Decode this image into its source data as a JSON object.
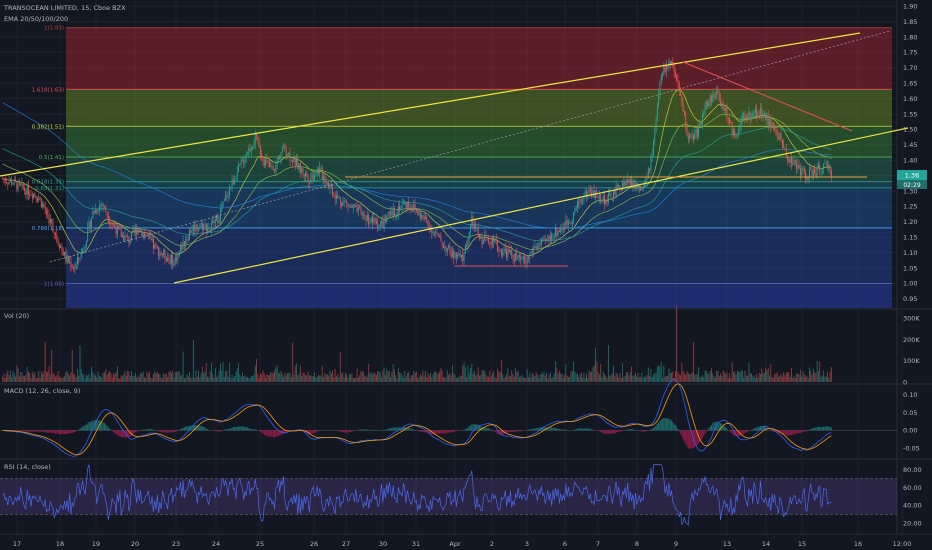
{
  "header": {
    "symbol_line": "TRANSOCEAN LIMITED, 15, Cboe BZX",
    "ema_line": "EMA 20/50/100/200"
  },
  "colors": {
    "background": "#131722",
    "grid": "#1e222d",
    "up": "#26a69a",
    "down": "#ef5350",
    "trendline": "#f0e442",
    "resistance": "#e0504e",
    "support_line": "#e8a33a",
    "macd_line": "#2962ff",
    "signal_line": "#ff9800",
    "rsi_line": "#4a6cf0",
    "rsi_band": "#7e57c2"
  },
  "chart_data": [
    {
      "type": "candlestick",
      "pane": "price",
      "title": "TRANSOCEAN LIMITED, 15, Cboe BZX",
      "ylim": [
        0.92,
        1.92
      ],
      "y_ticks": [
        "1.90",
        "1.85",
        "1.80",
        "1.75",
        "1.70",
        "1.65",
        "1.60",
        "1.55",
        "1.50",
        "1.45",
        "1.40",
        "1.35",
        "1.30",
        "1.25",
        "1.20",
        "1.15",
        "1.10",
        "1.05",
        "1.00",
        "0.95"
      ],
      "x_ticks": [
        "17",
        "18",
        "19",
        "20",
        "23",
        "24",
        "25",
        "26",
        "27",
        "30",
        "31",
        "Apr",
        "2",
        "3",
        "6",
        "7",
        "8",
        "9",
        "13",
        "14",
        "15",
        "16",
        "12:00"
      ],
      "last_price": "1.36",
      "countdown": "02:29",
      "fib_levels": [
        {
          "label": "1(1.83)",
          "value": 1.83,
          "color": "#c44040"
        },
        {
          "label": "1.618(1.63)",
          "value": 1.63,
          "color": "#e05050"
        },
        {
          "label": "0.382(1.51)",
          "value": 1.51,
          "color": "#cddc39"
        },
        {
          "label": "0.5(1.41)",
          "value": 1.41,
          "color": "#4caf50"
        },
        {
          "label": "0.618(1.33)",
          "value": 1.33,
          "color": "#26a69a"
        },
        {
          "label": "0.65(1.31)",
          "value": 1.31,
          "color": "#26a69a"
        },
        {
          "label": "0.786(1.18)",
          "value": 1.18,
          "color": "#42a5f5"
        },
        {
          "label": "1(1.00)",
          "value": 1.0,
          "color": "#5c6bc0"
        }
      ],
      "closes": [
        1.34,
        1.33,
        1.31,
        1.3,
        1.28,
        1.22,
        1.15,
        1.08,
        1.05,
        1.12,
        1.23,
        1.26,
        1.2,
        1.16,
        1.14,
        1.18,
        1.15,
        1.11,
        1.09,
        1.07,
        1.13,
        1.18,
        1.19,
        1.18,
        1.22,
        1.3,
        1.36,
        1.42,
        1.47,
        1.4,
        1.36,
        1.44,
        1.41,
        1.37,
        1.34,
        1.37,
        1.33,
        1.28,
        1.26,
        1.24,
        1.22,
        1.2,
        1.19,
        1.22,
        1.25,
        1.26,
        1.23,
        1.2,
        1.16,
        1.12,
        1.09,
        1.08,
        1.2,
        1.14,
        1.15,
        1.11,
        1.1,
        1.08,
        1.07,
        1.12,
        1.13,
        1.16,
        1.18,
        1.21,
        1.27,
        1.3,
        1.28,
        1.27,
        1.3,
        1.33,
        1.32,
        1.3,
        1.41,
        1.68,
        1.72,
        1.62,
        1.47,
        1.49,
        1.58,
        1.62,
        1.57,
        1.48,
        1.53,
        1.55,
        1.56,
        1.52,
        1.48,
        1.41,
        1.38,
        1.35,
        1.36,
        1.38,
        1.36
      ]
    },
    {
      "type": "bar",
      "pane": "volume",
      "title": "Vol (20)",
      "y_ticks": [
        "300K",
        "200K",
        "100K",
        "0"
      ],
      "ylim": [
        0,
        320000
      ]
    },
    {
      "type": "line",
      "pane": "macd",
      "title": "MACD (12, 26, close, 9)",
      "y_ticks": [
        "0.10",
        "0.05",
        "0.00",
        "-0.05"
      ],
      "ylim": [
        -0.075,
        0.125
      ]
    },
    {
      "type": "line",
      "pane": "rsi",
      "title": "RSI (14, close)",
      "y_ticks": [
        "80.00",
        "60.00",
        "40.00",
        "20.00"
      ],
      "ylim": [
        10,
        90
      ],
      "bands": [
        30,
        70
      ]
    }
  ]
}
